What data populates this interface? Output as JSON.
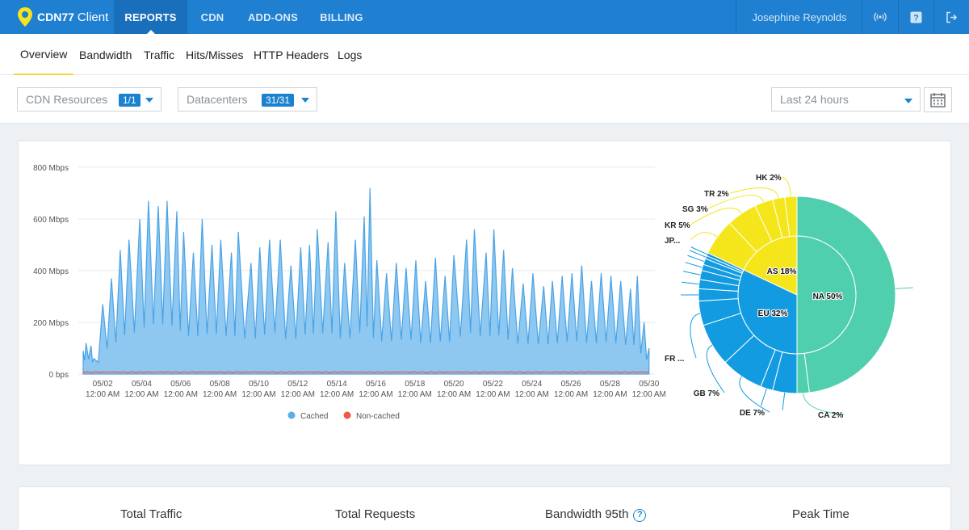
{
  "app": {
    "brand": "CDN77",
    "client_label": "Client"
  },
  "topnav": {
    "items": [
      {
        "label": "REPORTS",
        "active": true
      },
      {
        "label": "CDN",
        "active": false
      },
      {
        "label": "ADD-ONS",
        "active": false
      },
      {
        "label": "BILLING",
        "active": false
      }
    ],
    "user_name": "Josephine Reynolds",
    "icons": [
      "broadcast-icon",
      "help-icon",
      "logout-icon"
    ]
  },
  "subnav": {
    "tabs": [
      {
        "label": "Overview",
        "active": true
      },
      {
        "label": "Bandwidth",
        "active": false
      },
      {
        "label": "Traffic",
        "active": false
      },
      {
        "label": "Hits/Misses",
        "active": false
      },
      {
        "label": "HTTP Headers",
        "active": false
      },
      {
        "label": "Logs",
        "active": false
      }
    ]
  },
  "filters": {
    "cdn_resources": {
      "label": "CDN Resources",
      "badge": "1/1"
    },
    "datacenters": {
      "label": "Datacenters",
      "badge": "31/31"
    },
    "period": {
      "value": "Last 24 hours"
    },
    "calendar_icon": "calendar-icon"
  },
  "colors": {
    "topbar": "#1f7fd0",
    "cached": "#5aaeea",
    "non_cached": "#f1574b",
    "na": "#4fcfae",
    "eu": "#129be0",
    "as": "#f5e61c"
  },
  "chart_data": [
    {
      "type": "area",
      "y_ticks": [
        "0 bps",
        "200 Mbps",
        "400 Mbps",
        "600 Mbps",
        "800 Mbps"
      ],
      "ylim": [
        0,
        800
      ],
      "x_ticks": [
        {
          "date": "05/02",
          "time": "12:00 AM"
        },
        {
          "date": "05/04",
          "time": "12:00 AM"
        },
        {
          "date": "05/06",
          "time": "12:00 AM"
        },
        {
          "date": "05/08",
          "time": "12:00 AM"
        },
        {
          "date": "05/10",
          "time": "12:00 AM"
        },
        {
          "date": "05/12",
          "time": "12:00 AM"
        },
        {
          "date": "05/14",
          "time": "12:00 AM"
        },
        {
          "date": "05/16",
          "time": "12:00 AM"
        },
        {
          "date": "05/18",
          "time": "12:00 AM"
        },
        {
          "date": "05/20",
          "time": "12:00 AM"
        },
        {
          "date": "05/22",
          "time": "12:00 AM"
        },
        {
          "date": "05/24",
          "time": "12:00 AM"
        },
        {
          "date": "05/26",
          "time": "12:00 AM"
        },
        {
          "date": "05/28",
          "time": "12:00 AM"
        },
        {
          "date": "05/30",
          "time": "12:00 AM"
        }
      ],
      "peaks": [
        {
          "x": 0.0,
          "y": 90
        },
        {
          "x": 0.15,
          "y": 120
        },
        {
          "x": 0.4,
          "y": 110
        },
        {
          "x": 0.55,
          "y": 60
        },
        {
          "x": 1.0,
          "y": 270
        },
        {
          "x": 1.45,
          "y": 370
        },
        {
          "x": 1.9,
          "y": 480
        },
        {
          "x": 2.35,
          "y": 520
        },
        {
          "x": 2.9,
          "y": 600
        },
        {
          "x": 3.35,
          "y": 670
        },
        {
          "x": 3.85,
          "y": 650
        },
        {
          "x": 4.3,
          "y": 670
        },
        {
          "x": 4.8,
          "y": 630
        },
        {
          "x": 5.15,
          "y": 550
        },
        {
          "x": 5.65,
          "y": 470
        },
        {
          "x": 6.1,
          "y": 600
        },
        {
          "x": 6.6,
          "y": 500
        },
        {
          "x": 7.05,
          "y": 520
        },
        {
          "x": 7.6,
          "y": 470
        },
        {
          "x": 7.95,
          "y": 550
        },
        {
          "x": 8.6,
          "y": 430
        },
        {
          "x": 9.05,
          "y": 490
        },
        {
          "x": 9.55,
          "y": 520
        },
        {
          "x": 10.1,
          "y": 520
        },
        {
          "x": 10.65,
          "y": 420
        },
        {
          "x": 11.15,
          "y": 490
        },
        {
          "x": 11.6,
          "y": 500
        },
        {
          "x": 12.0,
          "y": 560
        },
        {
          "x": 12.55,
          "y": 510
        },
        {
          "x": 12.95,
          "y": 630
        },
        {
          "x": 13.4,
          "y": 430
        },
        {
          "x": 13.95,
          "y": 520
        },
        {
          "x": 14.4,
          "y": 610
        },
        {
          "x": 14.7,
          "y": 720
        },
        {
          "x": 15.05,
          "y": 440
        },
        {
          "x": 15.55,
          "y": 390
        },
        {
          "x": 16.05,
          "y": 430
        },
        {
          "x": 16.55,
          "y": 410
        },
        {
          "x": 17.05,
          "y": 440
        },
        {
          "x": 17.55,
          "y": 360
        },
        {
          "x": 18.05,
          "y": 450
        },
        {
          "x": 18.55,
          "y": 380
        },
        {
          "x": 19.0,
          "y": 460
        },
        {
          "x": 19.65,
          "y": 520
        },
        {
          "x": 20.05,
          "y": 560
        },
        {
          "x": 20.65,
          "y": 470
        },
        {
          "x": 21.05,
          "y": 560
        },
        {
          "x": 21.55,
          "y": 480
        },
        {
          "x": 22.0,
          "y": 410
        },
        {
          "x": 22.55,
          "y": 350
        },
        {
          "x": 23.05,
          "y": 390
        },
        {
          "x": 23.6,
          "y": 340
        },
        {
          "x": 24.05,
          "y": 360
        },
        {
          "x": 24.55,
          "y": 380
        },
        {
          "x": 25.05,
          "y": 390
        },
        {
          "x": 25.55,
          "y": 420
        },
        {
          "x": 26.05,
          "y": 360
        },
        {
          "x": 26.55,
          "y": 390
        },
        {
          "x": 27.05,
          "y": 380
        },
        {
          "x": 27.55,
          "y": 360
        },
        {
          "x": 28.05,
          "y": 330
        },
        {
          "x": 28.4,
          "y": 380
        },
        {
          "x": 28.75,
          "y": 200
        },
        {
          "x": 29.0,
          "y": 100
        }
      ],
      "valleys_fraction": 0.25,
      "non_cached_level": 5,
      "legend": [
        {
          "name": "Cached",
          "color": "#5aaeea"
        },
        {
          "name": "Non-cached",
          "color": "#f1574b"
        }
      ]
    },
    {
      "type": "pie",
      "inner": [
        {
          "name": "NA",
          "label": "NA 50%",
          "value": 50,
          "color": "#4fcfae"
        },
        {
          "name": "EU",
          "label": "EU 32%",
          "value": 32,
          "color": "#129be0"
        },
        {
          "name": "AS",
          "label": "AS 18%",
          "value": 18,
          "color": "#f5e61c"
        }
      ],
      "outer": [
        {
          "label": "",
          "value": 48,
          "region": "NA"
        },
        {
          "label": "CA 2%",
          "value": 2,
          "region": "NA"
        },
        {
          "label": "",
          "value": 4,
          "region": "EU"
        },
        {
          "label": "",
          "value": 2,
          "region": "EU"
        },
        {
          "label": "DE 7%",
          "value": 7,
          "region": "EU"
        },
        {
          "label": "GB 7%",
          "value": 7,
          "region": "EU"
        },
        {
          "label": "FR ...",
          "value": 4,
          "region": "EU"
        },
        {
          "label": "",
          "value": 2,
          "region": "EU"
        },
        {
          "label": "",
          "value": 1.5,
          "region": "EU"
        },
        {
          "label": "",
          "value": 1.5,
          "region": "EU"
        },
        {
          "label": "",
          "value": 1,
          "region": "EU"
        },
        {
          "label": "",
          "value": 1,
          "region": "EU"
        },
        {
          "label": "",
          "value": 0.5,
          "region": "EU"
        },
        {
          "label": "",
          "value": 0.5,
          "region": "EU"
        },
        {
          "label": "JP...",
          "value": 6,
          "region": "AS"
        },
        {
          "label": "KR 5%",
          "value": 5,
          "region": "AS"
        },
        {
          "label": "SG 3%",
          "value": 3,
          "region": "AS"
        },
        {
          "label": "TR 2%",
          "value": 2,
          "region": "AS"
        },
        {
          "label": "HK 2%",
          "value": 2,
          "region": "AS"
        }
      ]
    }
  ],
  "stats": {
    "total_traffic": "Total Traffic",
    "total_requests": "Total Requests",
    "bandwidth_95th": "Bandwidth 95th",
    "help_symbol": "?",
    "peak_time": "Peak Time"
  }
}
